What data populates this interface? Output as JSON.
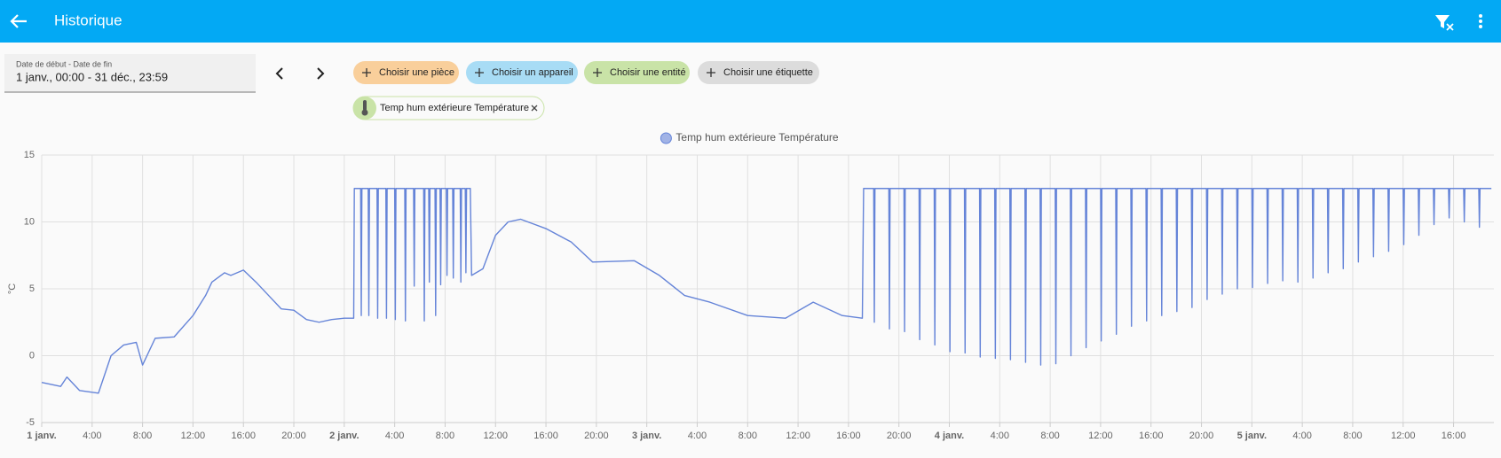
{
  "header": {
    "title": "Historique"
  },
  "date_picker": {
    "label": "Date de début - Date de fin",
    "value": "1 janv., 00:00 - 31 déc., 23:59"
  },
  "filters": [
    "Choisir une pièce",
    "Choisir un appareil",
    "Choisir une entité",
    "Choisir une étiquette"
  ],
  "selected": [
    "Temp hum extérieure Température"
  ],
  "chart_data": {
    "type": "line",
    "y_label": "°C",
    "xlim": [
      0,
      115.2
    ],
    "ylim": [
      -5,
      15
    ],
    "yticks": [
      -5,
      0,
      5,
      10,
      15
    ],
    "xticks": [
      {
        "value": 0,
        "label": "1 janv."
      },
      {
        "value": 4,
        "label": "4:00"
      },
      {
        "value": 8,
        "label": "8:00"
      },
      {
        "value": 12,
        "label": "12:00"
      },
      {
        "value": 16,
        "label": "16:00"
      },
      {
        "value": 20,
        "label": "20:00"
      },
      {
        "value": 24,
        "label": "2 janv."
      },
      {
        "value": 28,
        "label": "4:00"
      },
      {
        "value": 32,
        "label": "8:00"
      },
      {
        "value": 36,
        "label": "12:00"
      },
      {
        "value": 40,
        "label": "16:00"
      },
      {
        "value": 44,
        "label": "20:00"
      },
      {
        "value": 48,
        "label": "3 janv."
      },
      {
        "value": 52,
        "label": "4:00"
      },
      {
        "value": 56,
        "label": "8:00"
      },
      {
        "value": 60,
        "label": "12:00"
      },
      {
        "value": 64,
        "label": "16:00"
      },
      {
        "value": 68,
        "label": "20:00"
      },
      {
        "value": 72,
        "label": "4 janv."
      },
      {
        "value": 76,
        "label": "4:00"
      },
      {
        "value": 80,
        "label": "8:00"
      },
      {
        "value": 84,
        "label": "12:00"
      },
      {
        "value": 88,
        "label": "16:00"
      },
      {
        "value": 92,
        "label": "20:00"
      },
      {
        "value": 96,
        "label": "5 janv."
      },
      {
        "value": 100,
        "label": "4:00"
      },
      {
        "value": 104,
        "label": "8:00"
      },
      {
        "value": 108,
        "label": "12:00"
      },
      {
        "value": 112,
        "label": "16:00"
      }
    ],
    "grid": true,
    "legend": "top",
    "x": [
      0,
      1.5,
      2,
      3,
      4.5,
      5.5,
      6.5,
      7.5,
      8,
      9,
      10.5,
      12,
      13,
      13.5,
      14.5,
      15,
      16,
      17,
      18,
      19,
      20,
      21,
      22,
      23,
      24,
      24.75,
      24.8,
      25.3,
      25.35,
      25.4,
      25.9,
      25.95,
      26,
      26.6,
      26.65,
      26.7,
      27.3,
      27.35,
      27.4,
      28,
      28.05,
      28.1,
      28.8,
      28.85,
      28.9,
      29.5,
      29.55,
      29.6,
      30.3,
      30.35,
      30.4,
      30.7,
      30.75,
      30.8,
      31.2,
      31.25,
      31.3,
      31.6,
      31.65,
      31.7,
      32.1,
      32.15,
      32.2,
      32.6,
      32.65,
      32.7,
      33.2,
      33.25,
      33.3,
      33.6,
      33.65,
      33.7,
      34,
      34.1,
      35,
      36,
      37,
      38,
      40,
      42,
      43.7,
      47,
      49,
      51,
      53,
      56,
      59,
      61.2,
      63.5,
      65.1,
      65.2,
      66,
      66.05,
      66.1,
      67.2,
      67.25,
      67.3,
      68.4,
      68.45,
      68.5,
      69.6,
      69.65,
      69.7,
      70.8,
      70.85,
      70.9,
      72,
      72.05,
      72.1,
      73.2,
      73.25,
      73.3,
      74.4,
      74.45,
      74.5,
      75.6,
      75.65,
      75.7,
      76.8,
      76.85,
      76.9,
      78,
      78.05,
      78.1,
      79.2,
      79.25,
      79.3,
      80.4,
      80.45,
      80.5,
      81.6,
      81.65,
      81.7,
      82.8,
      82.85,
      82.9,
      84,
      84.05,
      84.1,
      85.2,
      85.25,
      85.3,
      86.4,
      86.45,
      86.5,
      87.6,
      87.65,
      87.7,
      88.8,
      88.85,
      88.9,
      90,
      90.05,
      90.1,
      91.2,
      91.25,
      91.3,
      92.4,
      92.45,
      92.5,
      93.6,
      93.65,
      93.7,
      94.8,
      94.85,
      94.9,
      96,
      96.05,
      96.1,
      97.2,
      97.25,
      97.3,
      98.4,
      98.45,
      98.5,
      99.6,
      99.65,
      99.7,
      100.8,
      100.85,
      100.9,
      102,
      102.05,
      102.1,
      103.2,
      103.25,
      103.3,
      104.4,
      104.45,
      104.5,
      105.6,
      105.65,
      105.7,
      106.8,
      106.85,
      106.9,
      108,
      108.05,
      108.1,
      109.2,
      109.25,
      109.3,
      110.4,
      110.45,
      110.5,
      111.6,
      111.65,
      111.7,
      112.8,
      112.85,
      112.9,
      114,
      114.05,
      114.1,
      115
    ],
    "series": [
      {
        "name": "Temp hum extérieure Température",
        "color": "#6584d8",
        "values": [
          -2,
          -2.3,
          -1.6,
          -2.6,
          -2.8,
          0,
          0.8,
          1,
          -0.7,
          1.3,
          1.4,
          3,
          4.5,
          5.5,
          6.2,
          6,
          6.4,
          5.5,
          4.5,
          3.5,
          3.4,
          2.7,
          2.5,
          2.7,
          2.8,
          2.8,
          12.5,
          12.5,
          3,
          12.5,
          12.5,
          3,
          12.5,
          12.5,
          2.8,
          12.5,
          12.5,
          2.8,
          12.5,
          12.5,
          2.7,
          12.5,
          12.5,
          2.6,
          12.5,
          12.5,
          5.2,
          12.5,
          12.5,
          2.6,
          12.5,
          12.5,
          5.5,
          12.5,
          12.5,
          3,
          12.5,
          12.5,
          5.3,
          12.5,
          12.5,
          6,
          12.5,
          12.5,
          5.8,
          12.5,
          12.5,
          5.5,
          12.5,
          12.5,
          6.2,
          12.5,
          12.5,
          6,
          6.5,
          9,
          10,
          10.2,
          9.5,
          8.5,
          7,
          7.1,
          6,
          4.5,
          4,
          3,
          2.8,
          4,
          3,
          2.8,
          12.5,
          12.5,
          2.5,
          12.5,
          12.5,
          2,
          12.5,
          12.5,
          1.8,
          12.5,
          12.5,
          1.2,
          12.5,
          12.5,
          0.8,
          12.5,
          12.5,
          0.3,
          12.5,
          12.5,
          0.2,
          12.5,
          12.5,
          -0.1,
          12.5,
          12.5,
          -0.2,
          12.5,
          12.5,
          -0.3,
          12.5,
          12.5,
          -0.5,
          12.5,
          12.5,
          -0.7,
          12.5,
          12.5,
          -0.6,
          12.5,
          12.5,
          0,
          12.5,
          12.5,
          0.6,
          12.5,
          12.5,
          1.1,
          12.5,
          12.5,
          1.6,
          12.5,
          12.5,
          2.2,
          12.5,
          12.5,
          2.6,
          12.5,
          12.5,
          3,
          12.5,
          12.5,
          3.3,
          12.5,
          12.5,
          3.6,
          12.5,
          12.5,
          4.2,
          12.5,
          12.5,
          4.6,
          12.5,
          12.5,
          5,
          12.5,
          12.5,
          5.1,
          12.5,
          12.5,
          5.4,
          12.5,
          12.5,
          5.6,
          12.5,
          12.5,
          5.5,
          12.5,
          12.5,
          5.8,
          12.5,
          12.5,
          6.2,
          12.5,
          12.5,
          6.5,
          12.5,
          12.5,
          7,
          12.5,
          12.5,
          7.4,
          12.5,
          12.5,
          7.8,
          12.5,
          12.5,
          8.3,
          12.5,
          12.5,
          9,
          12.5,
          12.5,
          9.8,
          12.5,
          12.5,
          10.3,
          12.5,
          12.5,
          10,
          12.5,
          12.5,
          9.6,
          12.5,
          12.5
        ]
      }
    ]
  }
}
